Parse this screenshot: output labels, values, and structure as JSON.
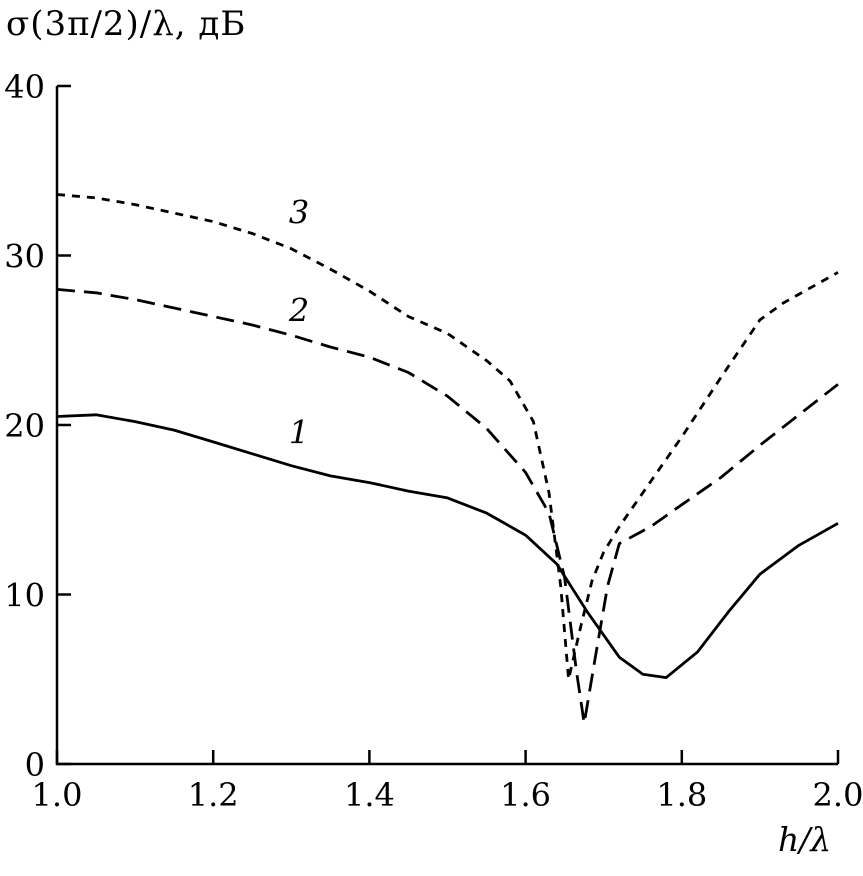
{
  "figure": {
    "title": "σ(3π/2)/λ, дБ",
    "xlabel": "h/λ"
  },
  "chart_data": {
    "type": "line",
    "title": "σ(3π/2)/λ, дБ",
    "xlabel": "h/λ",
    "ylabel": "σ(3π/2)/λ, дБ",
    "xlim": [
      1.0,
      2.0
    ],
    "ylim": [
      0,
      40
    ],
    "x_ticks": [
      1.0,
      1.2,
      1.4,
      1.6,
      1.8,
      2.0
    ],
    "x_tick_labels": [
      "1.0",
      "1.2",
      "1.4",
      "1.6",
      "1.8",
      "2.0"
    ],
    "y_ticks": [
      0,
      10,
      20,
      30,
      40
    ],
    "y_tick_labels": [
      "0",
      "10",
      "20",
      "30",
      "40"
    ],
    "grid": false,
    "legend_position": "inline-curve-numbers",
    "line_color": "#000000",
    "series": [
      {
        "name": "1",
        "style": "solid",
        "label_pos": {
          "x": 1.31,
          "y": 18.9
        },
        "x": [
          1.0,
          1.05,
          1.1,
          1.15,
          1.2,
          1.25,
          1.3,
          1.35,
          1.4,
          1.45,
          1.5,
          1.55,
          1.6,
          1.64,
          1.68,
          1.72,
          1.75,
          1.78,
          1.82,
          1.86,
          1.9,
          1.95,
          2.0
        ],
        "y": [
          20.5,
          20.6,
          20.2,
          19.7,
          19.0,
          18.3,
          17.6,
          17.0,
          16.6,
          16.1,
          15.7,
          14.8,
          13.5,
          11.8,
          8.9,
          6.3,
          5.3,
          5.1,
          6.6,
          9.0,
          11.2,
          12.9,
          14.2
        ]
      },
      {
        "name": "2",
        "style": "long-dash",
        "label_pos": {
          "x": 1.31,
          "y": 26.1
        },
        "x": [
          1.0,
          1.05,
          1.1,
          1.15,
          1.2,
          1.25,
          1.3,
          1.35,
          1.4,
          1.45,
          1.5,
          1.55,
          1.6,
          1.63,
          1.65,
          1.665,
          1.675,
          1.69,
          1.705,
          1.72,
          1.76,
          1.8,
          1.85,
          1.9,
          1.95,
          2.0
        ],
        "y": [
          28.0,
          27.8,
          27.4,
          26.9,
          26.4,
          25.9,
          25.3,
          24.6,
          24.0,
          23.1,
          21.7,
          19.8,
          17.2,
          14.8,
          11.0,
          5.5,
          2.4,
          6.5,
          10.5,
          13.0,
          14.0,
          15.3,
          16.9,
          18.8,
          20.6,
          22.4
        ]
      },
      {
        "name": "3",
        "style": "short-dash",
        "label_pos": {
          "x": 1.31,
          "y": 31.9
        },
        "x": [
          1.0,
          1.05,
          1.1,
          1.15,
          1.2,
          1.25,
          1.3,
          1.35,
          1.4,
          1.45,
          1.5,
          1.55,
          1.58,
          1.61,
          1.63,
          1.645,
          1.655,
          1.67,
          1.685,
          1.7,
          1.72,
          1.75,
          1.8,
          1.85,
          1.9,
          1.93,
          2.0
        ],
        "y": [
          33.6,
          33.4,
          33.0,
          32.5,
          32.0,
          31.3,
          30.4,
          29.2,
          27.9,
          26.4,
          25.4,
          23.8,
          22.6,
          20.2,
          16.0,
          10.5,
          5.0,
          8.0,
          10.8,
          12.5,
          14.0,
          16.0,
          19.3,
          22.8,
          26.2,
          27.2,
          29.0
        ]
      }
    ]
  }
}
